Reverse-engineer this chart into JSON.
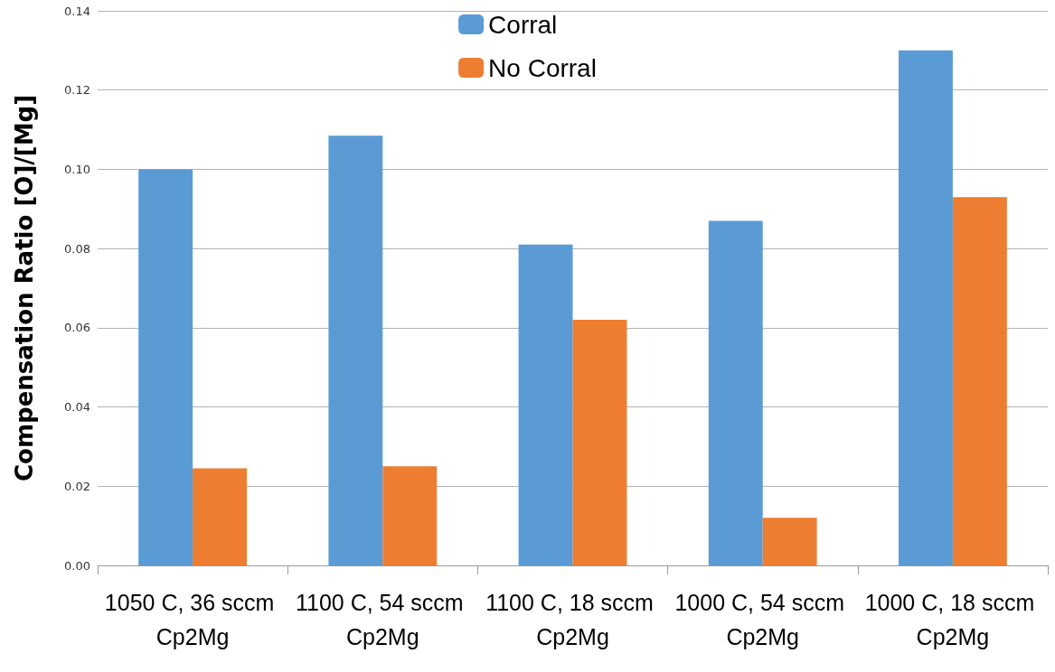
{
  "chart_data": {
    "type": "bar",
    "ylabel": "Compensation Ratio [O]/[Mg]",
    "categories": [
      "1050 C, 36 sccm Cp2Mg",
      "1100 C, 54 sccm Cp2Mg",
      "1100 C, 18 sccm Cp2Mg",
      "1000 C, 54 sccm Cp2Mg",
      "1000 C, 18 sccm Cp2Mg"
    ],
    "series": [
      {
        "name": "Corral",
        "color": "#5b9bd5",
        "values": [
          0.1,
          0.1085,
          0.081,
          0.087,
          0.13
        ]
      },
      {
        "name": "No Corral",
        "color": "#ed7d31",
        "values": [
          0.0245,
          0.025,
          0.062,
          0.012,
          0.093
        ]
      }
    ],
    "ylim": [
      0,
      0.14
    ],
    "yticks": [
      {
        "value": 0,
        "label": "0.00"
      },
      {
        "value": 0.02,
        "label": "0.02"
      },
      {
        "value": 0.04,
        "label": "0.04"
      },
      {
        "value": 0.06,
        "label": "0.06"
      },
      {
        "value": 0.08,
        "label": "0.08"
      },
      {
        "value": 0.1,
        "label": "0.10"
      },
      {
        "value": 0.12,
        "label": "0.12"
      },
      {
        "value": 0.14,
        "label": "0.14"
      }
    ],
    "grid": "y",
    "legend": "top"
  }
}
